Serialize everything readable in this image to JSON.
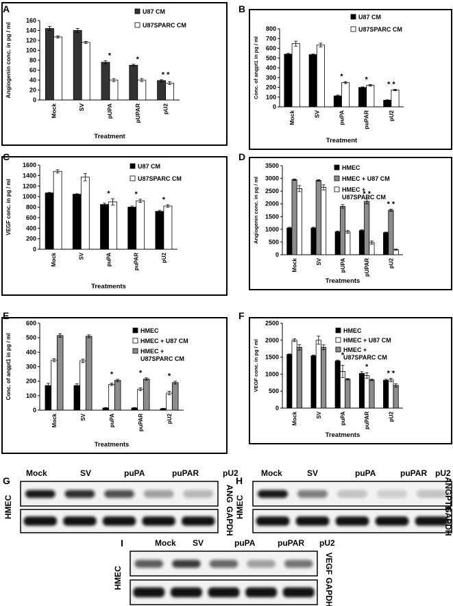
{
  "chart_data": [
    {
      "type": "bar",
      "panel": "A",
      "categories": [
        "Mock",
        "SV",
        "pUPA",
        "pUPAR",
        "pU2"
      ],
      "series": [
        {
          "name": "U87 CM",
          "values": [
            144,
            140,
            76,
            70,
            39
          ],
          "errors": [
            4,
            4,
            3,
            2,
            2
          ],
          "color": "#333333"
        },
        {
          "name": "U87SPARC CM",
          "values": [
            127,
            116,
            40,
            40,
            34
          ],
          "errors": [
            2,
            2,
            3,
            3,
            3
          ],
          "color": "#ffffff"
        }
      ],
      "ylim": [
        0,
        160
      ],
      "yticks": [
        0,
        20,
        40,
        60,
        80,
        100,
        120,
        140,
        160
      ],
      "ylabel": "Angiogenin conc. in pg / ml",
      "xlabel": "Treatment",
      "stars": [
        "",
        "",
        "*",
        "*",
        "* *"
      ]
    },
    {
      "type": "bar",
      "panel": "B",
      "categories": [
        "Mock",
        "SV",
        "puPA",
        "puPAR",
        "pU2"
      ],
      "series": [
        {
          "name": "U87 CM",
          "values": [
            540,
            535,
            112,
            198,
            68
          ],
          "errors": [
            8,
            6,
            8,
            6,
            4
          ],
          "color": "#000000"
        },
        {
          "name": "U87SPARC CM",
          "values": [
            648,
            633,
            248,
            220,
            172
          ],
          "errors": [
            25,
            20,
            10,
            8,
            8
          ],
          "color": "#ffffff"
        }
      ],
      "ylim": [
        0,
        800
      ],
      "yticks": [
        0,
        100,
        200,
        300,
        400,
        500,
        600,
        700,
        800
      ],
      "ylabel": "Conc. of angpt1 in pg / ml",
      "xlabel": "Treatment",
      "stars": [
        "",
        "",
        "*",
        "*",
        "* *"
      ]
    },
    {
      "type": "bar",
      "panel": "C",
      "categories": [
        "Mock",
        "SV",
        "puPA",
        "puPAR",
        "pU2"
      ],
      "series": [
        {
          "name": "U87 CM",
          "values": [
            1070,
            1045,
            850,
            800,
            720
          ],
          "errors": [
            10,
            10,
            25,
            20,
            20
          ],
          "color": "#000000"
        },
        {
          "name": "U87SPARC CM",
          "values": [
            1480,
            1370,
            900,
            920,
            820
          ],
          "errors": [
            30,
            70,
            60,
            30,
            25
          ],
          "color": "#ffffff"
        }
      ],
      "ylim": [
        0,
        1600
      ],
      "yticks": [
        0,
        200,
        400,
        600,
        800,
        1000,
        1200,
        1400,
        1600
      ],
      "ylabel": "VEGF conc. in pg / ml",
      "xlabel": "Treatments",
      "stars": [
        "",
        "",
        "*",
        "*",
        "*"
      ]
    },
    {
      "type": "bar",
      "panel": "D",
      "categories": [
        "Mock",
        "SV",
        "pUPA",
        "pUPAR",
        "pU2"
      ],
      "series": [
        {
          "name": "HMEC",
          "values": [
            1050,
            1050,
            900,
            950,
            870
          ],
          "errors": [
            30,
            30,
            30,
            30,
            20
          ],
          "color": "#000000"
        },
        {
          "name": "HMEC + U87 CM",
          "values": [
            2950,
            2920,
            1900,
            2100,
            1750
          ],
          "errors": [
            30,
            30,
            70,
            100,
            40
          ],
          "color": "#8c8c8c"
        },
        {
          "name": "HMEC + U87SPARC CM",
          "values": [
            2600,
            2650,
            900,
            480,
            200
          ],
          "errors": [
            120,
            100,
            60,
            60,
            20
          ],
          "color": "#ffffff"
        }
      ],
      "ylim": [
        0,
        3500
      ],
      "yticks": [
        0,
        500,
        1000,
        1500,
        2000,
        2500,
        3000,
        3500
      ],
      "ylabel": "Angiogenin conc. in pg / ml",
      "xlabel": "Treatments",
      "stars": [
        "",
        "",
        "",
        "* *",
        "* *"
      ]
    },
    {
      "type": "bar",
      "panel": "E",
      "categories": [
        "Mock",
        "SV",
        "puPA",
        "puPAR",
        "pU2"
      ],
      "series": [
        {
          "name": "HMEC",
          "values": [
            170,
            170,
            15,
            15,
            10
          ],
          "errors": [
            15,
            12,
            3,
            3,
            3
          ],
          "color": "#000000"
        },
        {
          "name": "HMEC + U87 CM",
          "values": [
            345,
            340,
            178,
            145,
            118
          ],
          "errors": [
            10,
            12,
            8,
            10,
            12
          ],
          "color": "#ffffff"
        },
        {
          "name": "HMEC + U87SPARC CM",
          "values": [
            515,
            510,
            205,
            215,
            190
          ],
          "errors": [
            12,
            10,
            8,
            8,
            10
          ],
          "color": "#8c8c8c"
        }
      ],
      "ylim": [
        0,
        600
      ],
      "yticks": [
        0,
        100,
        200,
        300,
        400,
        500,
        600
      ],
      "ylabel": "Conc. of angpt1 in pg / ml",
      "xlabel": "Treatments",
      "stars": [
        "",
        "",
        "*",
        "*",
        "*"
      ]
    },
    {
      "type": "bar",
      "panel": "F",
      "categories": [
        "Mock",
        "SV",
        "puPA",
        "puPAR",
        "pU2"
      ],
      "series": [
        {
          "name": "HMEC",
          "values": [
            1580,
            1540,
            1390,
            1020,
            820
          ],
          "errors": [
            15,
            20,
            20,
            50,
            30
          ],
          "color": "#000000"
        },
        {
          "name": "HMEC + U87 CM",
          "values": [
            2000,
            2000,
            1080,
            960,
            830
          ],
          "errors": [
            40,
            120,
            180,
            80,
            50
          ],
          "color": "#ffffff"
        },
        {
          "name": "HMEC + U87SPARC CM",
          "values": [
            1790,
            1790,
            850,
            830,
            670
          ],
          "errors": [
            80,
            70,
            20,
            20,
            50
          ],
          "color": "#8c8c8c"
        }
      ],
      "ylim": [
        0,
        2500
      ],
      "yticks": [
        0,
        500,
        1000,
        1500,
        2000,
        2500
      ],
      "ylabel": "VEGF conc. in pg / ml",
      "xlabel": "Treatments",
      "stars": [
        "",
        "",
        "*",
        "*",
        "* *"
      ]
    }
  ],
  "blots": [
    {
      "panel": "G",
      "lanes": [
        "Mock",
        "SV",
        "puPA",
        "puPAR",
        "pU2"
      ],
      "cell": "HMEC",
      "target": "ANG",
      "control": "GAPDH",
      "intensity": [
        0.95,
        0.85,
        0.7,
        0.35,
        0.25
      ]
    },
    {
      "panel": "H",
      "lanes": [
        "Mock",
        "SV",
        "puPA",
        "puPAR",
        "pU2"
      ],
      "cell": "HMEC",
      "target": "ANGPT1",
      "control": "GAPDH",
      "intensity": [
        0.95,
        0.5,
        0.2,
        0.15,
        0.2
      ]
    },
    {
      "panel": "I",
      "lanes": [
        "Mock",
        "SV",
        "puPA",
        "puPAR",
        "pU2"
      ],
      "cell": "HMEC",
      "target": "VEGF",
      "control": "GAPDH",
      "intensity": [
        0.65,
        0.8,
        0.6,
        0.35,
        0.55
      ]
    }
  ]
}
